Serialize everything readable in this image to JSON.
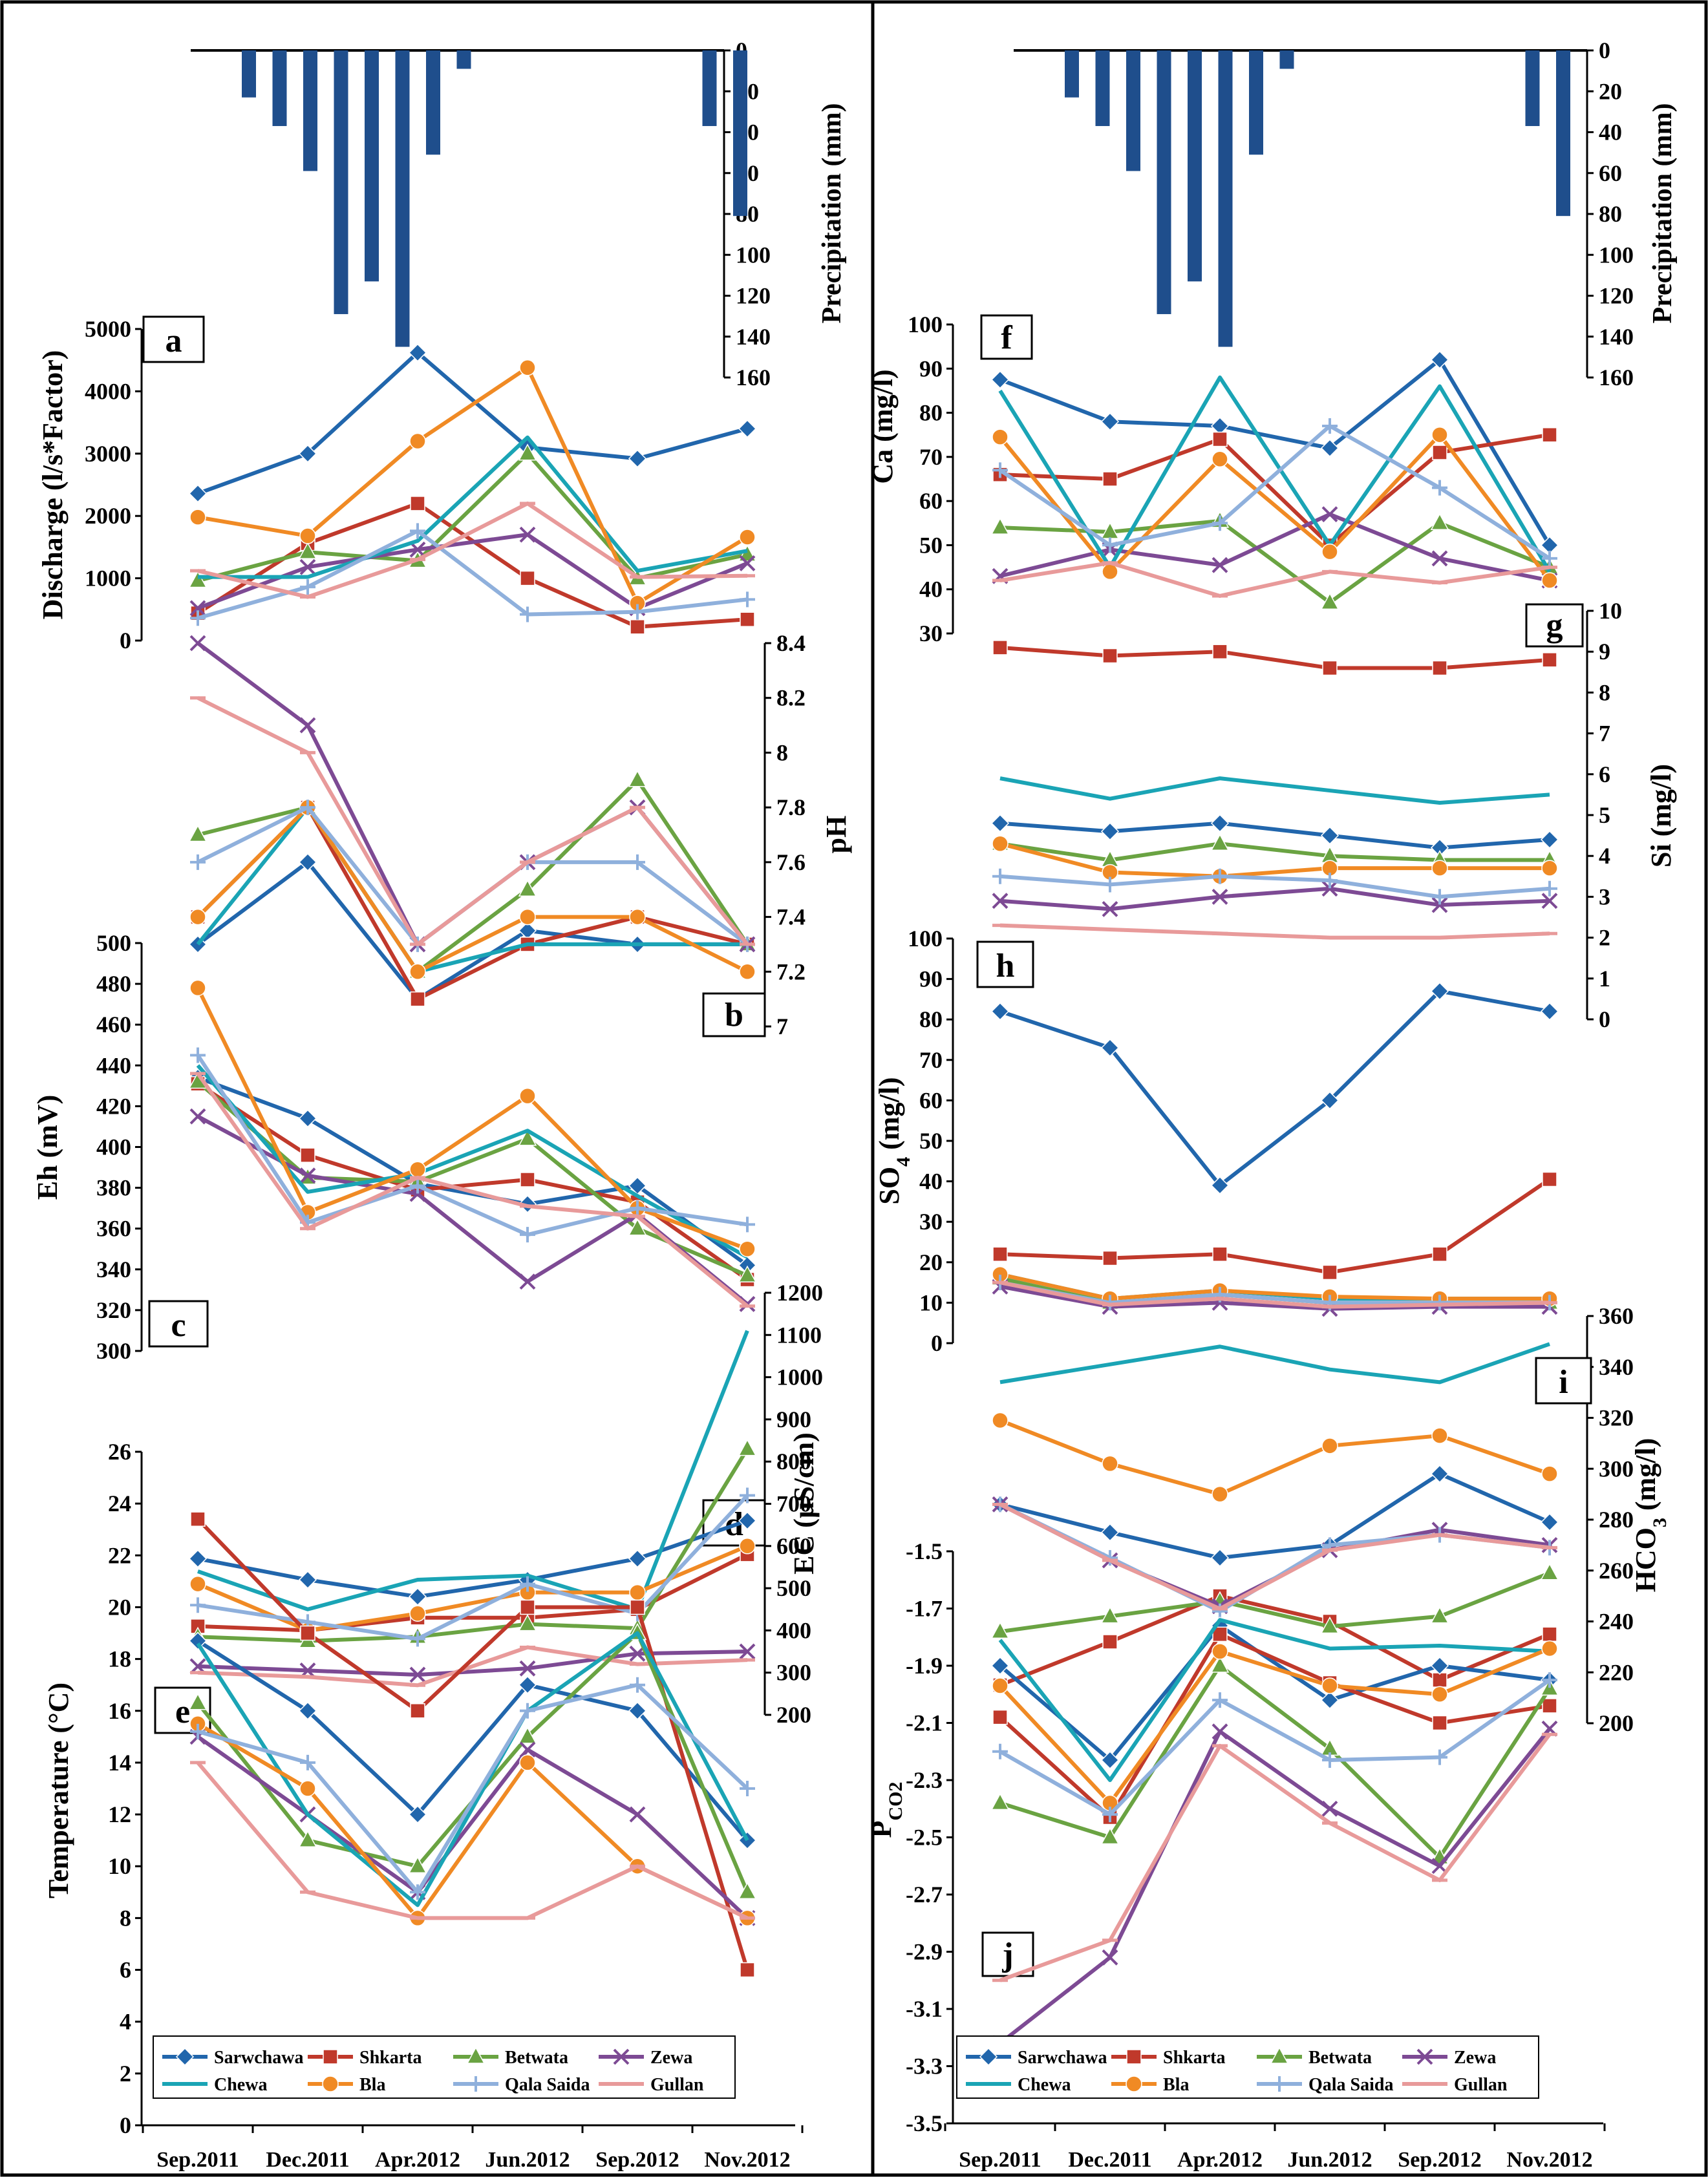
{
  "months": [
    "Sep.2011",
    "Dec.2011",
    "Apr.2012",
    "Jun.2012",
    "Sep.2012",
    "Nov.2012"
  ],
  "springs": [
    {
      "name": "Sarwchawa",
      "color": "#2166ac",
      "marker": "diamond"
    },
    {
      "name": "Shkarta",
      "color": "#c0392b",
      "marker": "square"
    },
    {
      "name": "Betwata",
      "color": "#6aa342",
      "marker": "triangle"
    },
    {
      "name": "Zewa",
      "color": "#7d4a94",
      "marker": "x"
    },
    {
      "name": "Chewa",
      "color": "#1aa4b5",
      "marker": "none"
    },
    {
      "name": "Bla",
      "color": "#f08a24",
      "marker": "circle"
    },
    {
      "name": "Qala Saida",
      "color": "#8fb0dc",
      "marker": "plus"
    },
    {
      "name": "Gullan",
      "color": "#e89a9a",
      "marker": "dash"
    }
  ],
  "precipitation": {
    "label": "Precipitation (mm)",
    "ticks": [
      "0",
      "20",
      "40",
      "60",
      "80",
      "100",
      "120",
      "140",
      "160"
    ],
    "values": [
      23,
      37,
      59,
      129,
      113,
      145,
      51,
      9,
      0,
      0,
      0,
      0,
      0,
      0,
      0,
      37,
      81
    ],
    "bar_color": "#1f4e8c"
  },
  "chart_data": [
    {
      "id": "a",
      "type": "line",
      "title": "a",
      "ylabel": "Discharge (l/s*Factor)",
      "ylim": [
        0,
        5000
      ],
      "ticks": [
        "0",
        "1000",
        "2000",
        "3000",
        "4000",
        "5000"
      ],
      "series": [
        {
          "name": "Sarwchawa",
          "values": [
            2360,
            3000,
            4620,
            3100,
            2920,
            3400
          ]
        },
        {
          "name": "Shkarta",
          "values": [
            440,
            1560,
            2200,
            1000,
            220,
            340
          ]
        },
        {
          "name": "Betwata",
          "values": [
            960,
            1420,
            1280,
            3000,
            1000,
            1380
          ]
        },
        {
          "name": "Zewa",
          "values": [
            520,
            1180,
            1460,
            1700,
            520,
            1240
          ]
        },
        {
          "name": "Chewa",
          "values": [
            1020,
            1020,
            1600,
            3260,
            1120,
            1440
          ]
        },
        {
          "name": "Bla",
          "values": [
            1980,
            1680,
            3200,
            4380,
            600,
            1660
          ]
        },
        {
          "name": "Qala Saida",
          "values": [
            360,
            860,
            1760,
            420,
            460,
            660
          ]
        },
        {
          "name": "Gullan",
          "values": [
            1120,
            700,
            1300,
            2200,
            1020,
            1040
          ]
        }
      ]
    },
    {
      "id": "b",
      "type": "line",
      "title": "b",
      "ylabel": "pH",
      "ylim": [
        7,
        8.4
      ],
      "ticks": [
        "7",
        "7.2",
        "7.4",
        "7.6",
        "7.8",
        "8",
        "8.2",
        "8.4"
      ],
      "series": [
        {
          "name": "Sarwchawa",
          "values": [
            7.3,
            7.6,
            7.1,
            7.35,
            7.3,
            7.3
          ]
        },
        {
          "name": "Shkarta",
          "values": [
            7.4,
            7.8,
            7.1,
            7.3,
            7.4,
            7.3
          ]
        },
        {
          "name": "Betwata",
          "values": [
            7.7,
            7.8,
            7.2,
            7.5,
            7.9,
            7.3
          ]
        },
        {
          "name": "Zewa",
          "values": [
            8.4,
            8.1,
            7.3,
            7.6,
            7.8,
            7.3
          ]
        },
        {
          "name": "Chewa",
          "values": [
            7.3,
            7.8,
            7.2,
            7.3,
            7.3,
            7.3
          ]
        },
        {
          "name": "Bla",
          "values": [
            7.4,
            7.8,
            7.2,
            7.4,
            7.4,
            7.2
          ]
        },
        {
          "name": "Qala Saida",
          "values": [
            7.6,
            7.8,
            7.3,
            7.6,
            7.6,
            7.3
          ]
        },
        {
          "name": "Gullan",
          "values": [
            8.2,
            8.0,
            7.3,
            7.6,
            7.8,
            7.3
          ]
        }
      ]
    },
    {
      "id": "c",
      "type": "line",
      "title": "c",
      "ylabel": "Eh (mV)",
      "ylim": [
        300,
        500
      ],
      "ticks": [
        "300",
        "320",
        "340",
        "360",
        "380",
        "400",
        "420",
        "440",
        "460",
        "480",
        "500"
      ],
      "series": [
        {
          "name": "Sarwchawa",
          "values": [
            434,
            414,
            382,
            372,
            381,
            342
          ]
        },
        {
          "name": "Shkarta",
          "values": [
            431,
            396,
            379,
            384,
            373,
            335
          ]
        },
        {
          "name": "Betwata",
          "values": [
            432,
            385,
            383,
            404,
            360,
            337
          ]
        },
        {
          "name": "Zewa",
          "values": [
            415,
            386,
            377,
            334,
            367,
            323
          ]
        },
        {
          "name": "Chewa",
          "values": [
            440,
            378,
            387,
            408,
            376,
            346
          ]
        },
        {
          "name": "Bla",
          "values": [
            478,
            368,
            389,
            425,
            370,
            350
          ]
        },
        {
          "name": "Qala Saida",
          "values": [
            445,
            363,
            381,
            357,
            370,
            362
          ]
        },
        {
          "name": "Gullan",
          "values": [
            436,
            360,
            385,
            371,
            366,
            322
          ]
        }
      ]
    },
    {
      "id": "d",
      "type": "line",
      "title": "d",
      "ylabel": "EC (µS/cm)",
      "ylim": [
        200,
        1200
      ],
      "ticks": [
        "200",
        "300",
        "400",
        "500",
        "600",
        "700",
        "800",
        "900",
        "1000",
        "1100",
        "1200"
      ],
      "series": [
        {
          "name": "Sarwchawa",
          "values": [
            570,
            520,
            480,
            520,
            570,
            660
          ]
        },
        {
          "name": "Shkarta",
          "values": [
            410,
            400,
            430,
            430,
            450,
            580
          ]
        },
        {
          "name": "Betwata",
          "values": [
            385,
            375,
            385,
            415,
            405,
            830
          ]
        },
        {
          "name": "Zewa",
          "values": [
            315,
            305,
            295,
            310,
            345,
            350
          ]
        },
        {
          "name": "Chewa",
          "values": [
            540,
            450,
            520,
            530,
            450,
            1110
          ]
        },
        {
          "name": "Bla",
          "values": [
            510,
            400,
            440,
            490,
            490,
            600
          ]
        },
        {
          "name": "Qala Saida",
          "values": [
            460,
            420,
            380,
            510,
            440,
            720
          ]
        },
        {
          "name": "Gullan",
          "values": [
            300,
            290,
            270,
            360,
            320,
            330
          ]
        }
      ]
    },
    {
      "id": "e",
      "type": "line",
      "title": "e",
      "ylabel": "Temperature (°C)",
      "ylim": [
        0,
        26
      ],
      "ticks": [
        "0",
        "2",
        "4",
        "6",
        "8",
        "10",
        "12",
        "14",
        "16",
        "18",
        "20",
        "22",
        "24",
        "26"
      ],
      "series": [
        {
          "name": "Sarwchawa",
          "values": [
            18.7,
            16,
            12,
            17,
            16,
            11
          ]
        },
        {
          "name": "Shkarta",
          "values": [
            23.4,
            19,
            16,
            20,
            20,
            6
          ]
        },
        {
          "name": "Betwata",
          "values": [
            16.3,
            11,
            10,
            15,
            19,
            9
          ]
        },
        {
          "name": "Zewa",
          "values": [
            15,
            12,
            9,
            14.5,
            12,
            8
          ]
        },
        {
          "name": "Chewa",
          "values": [
            18.6,
            12,
            8.5,
            16,
            19,
            11
          ]
        },
        {
          "name": "Bla",
          "values": [
            15.5,
            13,
            8,
            14,
            10,
            8
          ]
        },
        {
          "name": "Qala Saida",
          "values": [
            15.2,
            14,
            9,
            16,
            17,
            13
          ]
        },
        {
          "name": "Gullan",
          "values": [
            14,
            9,
            8,
            8,
            10,
            8
          ]
        }
      ]
    },
    {
      "id": "f",
      "type": "line",
      "title": "f",
      "ylabel": "Ca (mg/l)",
      "ylim": [
        30,
        100
      ],
      "ticks": [
        "30",
        "40",
        "50",
        "60",
        "70",
        "80",
        "90",
        "100"
      ],
      "series": [
        {
          "name": "Sarwchawa",
          "values": [
            87.5,
            78,
            77,
            72,
            92,
            50
          ]
        },
        {
          "name": "Shkarta",
          "values": [
            66,
            65,
            74,
            50,
            71,
            75
          ]
        },
        {
          "name": "Betwata",
          "values": [
            54,
            53,
            55.5,
            37,
            55,
            45
          ]
        },
        {
          "name": "Zewa",
          "values": [
            43,
            49,
            45.5,
            57,
            47,
            42
          ]
        },
        {
          "name": "Chewa",
          "values": [
            85,
            45,
            88,
            50,
            86,
            44
          ]
        },
        {
          "name": "Bla",
          "values": [
            74.5,
            44,
            69.5,
            48.5,
            75,
            42
          ]
        },
        {
          "name": "Qala Saida",
          "values": [
            67,
            50,
            55,
            77,
            63,
            47
          ]
        },
        {
          "name": "Gullan",
          "values": [
            42,
            46,
            38.5,
            44,
            41.5,
            45
          ]
        }
      ]
    },
    {
      "id": "g",
      "type": "line",
      "title": "g",
      "ylabel": "Si (mg/l)",
      "ylim": [
        0,
        10
      ],
      "ticks": [
        "0",
        "1",
        "2",
        "3",
        "4",
        "5",
        "6",
        "7",
        "8",
        "9",
        "10"
      ],
      "series": [
        {
          "name": "Sarwchawa",
          "values": [
            4.8,
            4.6,
            4.8,
            4.5,
            4.2,
            4.4
          ]
        },
        {
          "name": "Shkarta",
          "values": [
            9.1,
            8.9,
            9.0,
            8.6,
            8.6,
            8.8
          ]
        },
        {
          "name": "Betwata",
          "values": [
            4.3,
            3.9,
            4.3,
            4.0,
            3.9,
            3.9
          ]
        },
        {
          "name": "Zewa",
          "values": [
            2.9,
            2.7,
            3.0,
            3.2,
            2.8,
            2.9
          ]
        },
        {
          "name": "Chewa",
          "values": [
            5.9,
            5.4,
            5.9,
            5.6,
            5.3,
            5.5
          ]
        },
        {
          "name": "Bla",
          "values": [
            4.3,
            3.6,
            3.5,
            3.7,
            3.7,
            3.7
          ]
        },
        {
          "name": "Qala Saida",
          "values": [
            3.5,
            3.3,
            3.5,
            3.4,
            3.0,
            3.2
          ]
        },
        {
          "name": "Gullan",
          "values": [
            2.3,
            2.2,
            2.1,
            2.0,
            2.0,
            2.1
          ]
        }
      ]
    },
    {
      "id": "h",
      "type": "line",
      "title": "h",
      "ylabel": "SO4 (mg/l)",
      "ylim": [
        0,
        100
      ],
      "ticks": [
        "0",
        "10",
        "20",
        "30",
        "40",
        "50",
        "60",
        "70",
        "80",
        "90",
        "100"
      ],
      "series": [
        {
          "name": "Sarwchawa",
          "values": [
            82,
            73,
            39,
            60,
            87,
            82
          ]
        },
        {
          "name": "Shkarta",
          "values": [
            22,
            21,
            22,
            17.5,
            22,
            40.5
          ]
        },
        {
          "name": "Betwata",
          "values": [
            16,
            10,
            12,
            10,
            10,
            10
          ]
        },
        {
          "name": "Zewa",
          "values": [
            14,
            9,
            10,
            8.5,
            9,
            9
          ]
        },
        {
          "name": "Chewa",
          "values": [
            17,
            11,
            13,
            11,
            11,
            11
          ]
        },
        {
          "name": "Bla",
          "values": [
            17,
            11,
            13,
            11.5,
            11,
            11
          ]
        },
        {
          "name": "Qala Saida",
          "values": [
            15,
            10,
            12,
            10,
            10,
            10
          ]
        },
        {
          "name": "Gullan",
          "values": [
            15,
            9.5,
            11,
            9,
            9.5,
            10
          ]
        }
      ]
    },
    {
      "id": "i",
      "type": "line",
      "title": "i",
      "ylabel": "HCO3 (mg/l)",
      "ylim": [
        200,
        360
      ],
      "ticks": [
        "200",
        "220",
        "240",
        "260",
        "280",
        "300",
        "320",
        "340",
        "360"
      ],
      "series": [
        {
          "name": "Sarwchawa",
          "values": [
            286,
            275,
            265,
            270,
            298,
            279
          ]
        },
        {
          "name": "Shkarta",
          "values": [
            215,
            232,
            250,
            240,
            217,
            235
          ]
        },
        {
          "name": "Betwata",
          "values": [
            236,
            242,
            248,
            238,
            242,
            259
          ]
        },
        {
          "name": "Zewa",
          "values": [
            286,
            264,
            246,
            268,
            276,
            270
          ]
        },
        {
          "name": "Chewa",
          "values": [
            334,
            341,
            348,
            339,
            334,
            349
          ]
        },
        {
          "name": "Bla",
          "values": [
            319,
            302,
            290,
            309,
            313,
            298
          ]
        },
        {
          "name": "Qala Saida",
          "values": [
            286,
            265,
            244,
            270,
            274,
            269
          ]
        },
        {
          "name": "Gullan",
          "values": [
            286,
            264,
            245,
            268,
            274,
            269
          ]
        }
      ]
    },
    {
      "id": "j",
      "type": "line",
      "title": "j",
      "ylabel": "PCO2",
      "ylim": [
        -3.5,
        -1.5
      ],
      "ticks": [
        "-3.5",
        "-3.3",
        "-3.1",
        "-2.9",
        "-2.7",
        "-2.5",
        "-2.3",
        "-2.1",
        "-1.9",
        "-1.7",
        "-1.5"
      ],
      "series": [
        {
          "name": "Sarwchawa",
          "values": [
            -1.9,
            -2.23,
            -1.76,
            -2.02,
            -1.9,
            -1.95
          ]
        },
        {
          "name": "Shkarta",
          "values": [
            -2.08,
            -2.43,
            -1.79,
            -1.96,
            -2.1,
            -2.04
          ]
        },
        {
          "name": "Betwata",
          "values": [
            -2.38,
            -2.5,
            -1.9,
            -2.19,
            -2.57,
            -1.98
          ]
        },
        {
          "name": "Zewa",
          "values": [
            -3.22,
            -2.92,
            -2.13,
            -2.4,
            -2.6,
            -2.12
          ]
        },
        {
          "name": "Chewa",
          "values": [
            -1.81,
            -2.3,
            -1.74,
            -1.84,
            -1.83,
            -1.85
          ]
        },
        {
          "name": "Bla",
          "values": [
            -1.97,
            -2.38,
            -1.85,
            -1.97,
            -2.0,
            -1.84
          ]
        },
        {
          "name": "Qala Saida",
          "values": [
            -2.2,
            -2.42,
            -2.02,
            -2.23,
            -2.22,
            -1.95
          ]
        },
        {
          "name": "Gullan",
          "values": [
            -3.0,
            -2.86,
            -2.18,
            -2.45,
            -2.65,
            -2.14
          ]
        }
      ]
    }
  ]
}
